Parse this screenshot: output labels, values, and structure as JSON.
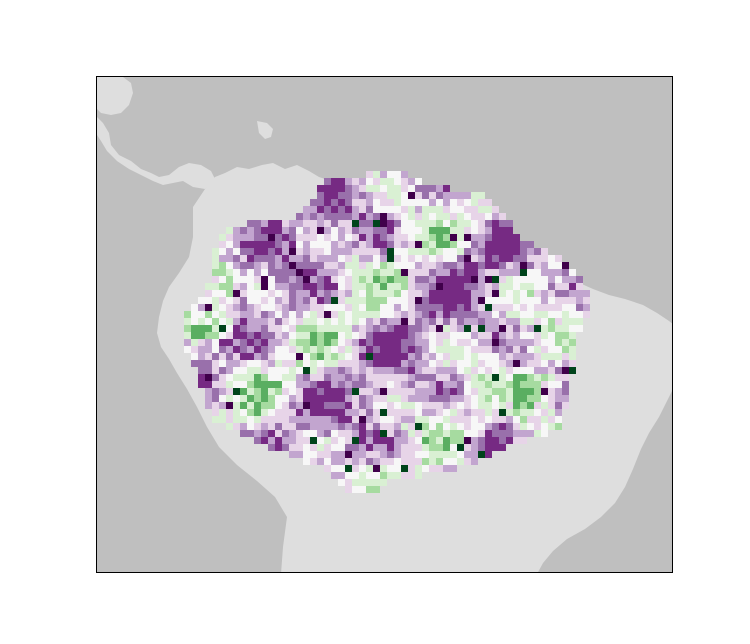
{
  "map": {
    "colors": {
      "ocean": "#bfbfbf",
      "land": "#dedede",
      "frame": "#000000"
    },
    "diverging_palette": [
      "#40004b",
      "#762a83",
      "#9970ab",
      "#c2a5cf",
      "#e7d4e8",
      "#f7f7f7",
      "#d9f0d3",
      "#a6dba0",
      "#5aae61",
      "#1b7837",
      "#00441b"
    ]
  }
}
